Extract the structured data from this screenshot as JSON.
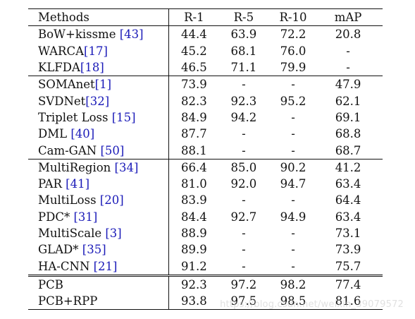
{
  "headers": [
    "Methods",
    "R-1",
    "R-5",
    "R-10",
    "mAP"
  ],
  "rows": [
    {
      "method": "BoW+kissme ",
      "ref": "[43]",
      "r1": "44.4",
      "r5": "63.9",
      "r10": "72.2",
      "map": "20.8"
    },
    {
      "method": "WARCA",
      "ref": "[17]",
      "r1": "45.2",
      "r5": "68.1",
      "r10": "76.0",
      "map": "-"
    },
    {
      "method": "KLFDA",
      "ref": "[18]",
      "r1": "46.5",
      "r5": "71.1",
      "r10": "79.9",
      "map": "-"
    },
    {
      "method": "SOMAnet",
      "ref": "[1]",
      "r1": "73.9",
      "r5": "-",
      "r10": "-",
      "map": "47.9"
    },
    {
      "method": "SVDNet",
      "ref": "[32]",
      "r1": "82.3",
      "r5": "92.3",
      "r10": "95.2",
      "map": "62.1"
    },
    {
      "method": "Triplet Loss ",
      "ref": "[15]",
      "r1": "84.9",
      "r5": "94.2",
      "r10": "-",
      "map": "69.1"
    },
    {
      "method": "DML ",
      "ref": "[40]",
      "r1": "87.7",
      "r5": "-",
      "r10": "-",
      "map": "68.8"
    },
    {
      "method": "Cam-GAN ",
      "ref": "[50]",
      "r1": "88.1",
      "r5": "-",
      "r10": "-",
      "map": "68.7"
    },
    {
      "method": "MultiRegion ",
      "ref": "[34]",
      "r1": "66.4",
      "r5": "85.0",
      "r10": "90.2",
      "map": "41.2"
    },
    {
      "method": "PAR ",
      "ref": "[41]",
      "r1": "81.0",
      "r5": "92.0",
      "r10": "94.7",
      "map": "63.4"
    },
    {
      "method": "MultiLoss ",
      "ref": "[20]",
      "r1": "83.9",
      "r5": "-",
      "r10": "-",
      "map": "64.4"
    },
    {
      "method": "PDC* ",
      "ref": "[31]",
      "r1": "84.4",
      "r5": "92.7",
      "r10": "94.9",
      "map": "63.4"
    },
    {
      "method": "MultiScale ",
      "ref": "[3]",
      "r1": "88.9",
      "r5": "-",
      "r10": "-",
      "map": "73.1"
    },
    {
      "method": "GLAD* ",
      "ref": "[35]",
      "r1": "89.9",
      "r5": "-",
      "r10": "-",
      "map": "73.9"
    },
    {
      "method": "HA-CNN ",
      "ref": "[21]",
      "r1": "91.2",
      "r5": "-",
      "r10": "-",
      "map": "75.7"
    },
    {
      "method": "PCB",
      "ref": "",
      "r1": "92.3",
      "r5": "97.2",
      "r10": "98.2",
      "map": "77.4"
    },
    {
      "method": "PCB+RPP",
      "ref": "",
      "r1": "93.8",
      "r5": "97.5",
      "r10": "98.5",
      "map": "81.6"
    }
  ],
  "watermark": "https://blog.csdn.net/weixin_39079572"
}
